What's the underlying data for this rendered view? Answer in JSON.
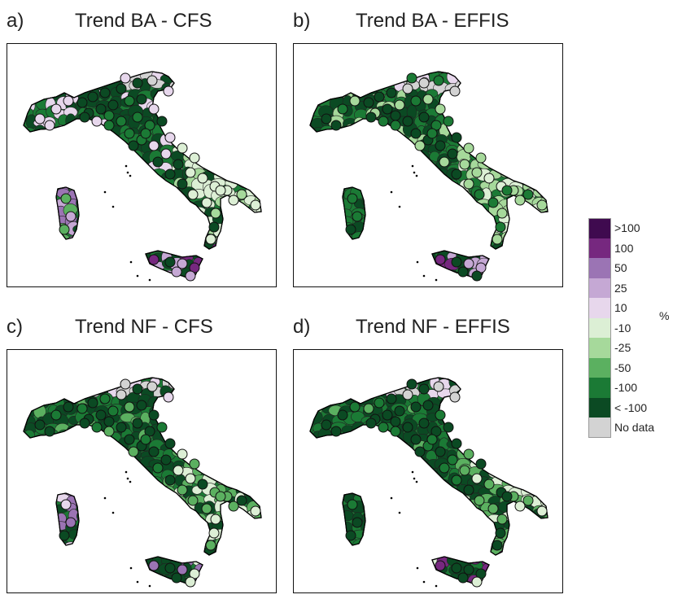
{
  "panels": [
    {
      "letter": "a)",
      "title": "Trend BA - CFS",
      "scheme": "ba_cfs"
    },
    {
      "letter": "b)",
      "title": "Trend BA - EFFIS",
      "scheme": "ba_effis"
    },
    {
      "letter": "c)",
      "title": "Trend NF - CFS",
      "scheme": "nf_cfs"
    },
    {
      "letter": "d)",
      "title": "Trend NF - EFFIS",
      "scheme": "nf_effis"
    }
  ],
  "legend": {
    "unit": "%",
    "items": [
      {
        "label": ">100",
        "color": "#3f0a4f"
      },
      {
        "label": "100",
        "color": "#76287f"
      },
      {
        "label": "50",
        "color": "#9b74b4"
      },
      {
        "label": "25",
        "color": "#c5a8d4"
      },
      {
        "label": "10",
        "color": "#e7d7ec"
      },
      {
        "label": "-10",
        "color": "#dcefd5"
      },
      {
        "label": "-25",
        "color": "#a6d99b"
      },
      {
        "label": "-50",
        "color": "#5bb060"
      },
      {
        "label": "-100",
        "color": "#1b7a35"
      },
      {
        "label": "< -100",
        "color": "#0b4a23"
      },
      {
        "label": "No data",
        "color": "#d3d3d3"
      }
    ]
  }
}
